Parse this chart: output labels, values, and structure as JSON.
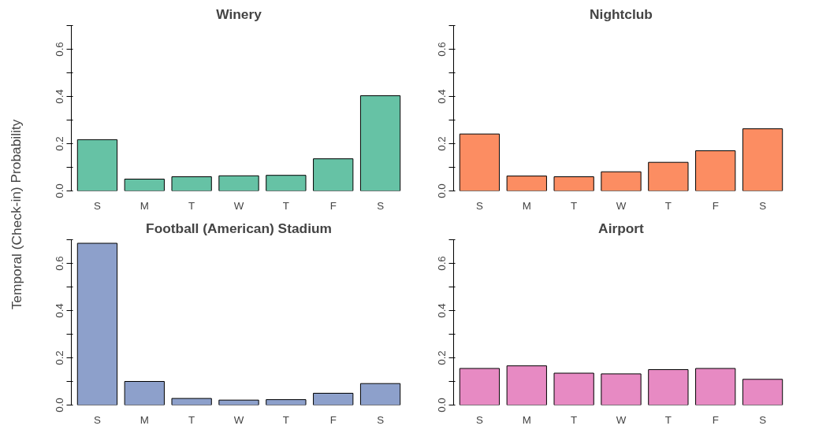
{
  "chart_data": [
    {
      "type": "bar",
      "title": "Winery",
      "ylabel": "Temporal (Check-in) Probability",
      "categories": [
        "S",
        "M",
        "T",
        "W",
        "T",
        "F",
        "S"
      ],
      "values": [
        0.217,
        0.05,
        0.06,
        0.064,
        0.066,
        0.136,
        0.403
      ],
      "color": "#66c2a5",
      "ylim": [
        0,
        0.7
      ],
      "yticks": [
        {
          "value": 0,
          "label": "0.0"
        },
        {
          "value": 0.1,
          "label": null
        },
        0.2,
        {
          "value": 0.3,
          "label": null
        },
        0.4,
        {
          "value": 0.5,
          "label": null
        },
        0.6,
        {
          "value": 0.7,
          "label": null
        }
      ],
      "grid": false
    },
    {
      "type": "bar",
      "title": "Nightclub",
      "categories": [
        "S",
        "M",
        "T",
        "W",
        "T",
        "F",
        "S"
      ],
      "values": [
        0.241,
        0.063,
        0.06,
        0.081,
        0.121,
        0.17,
        0.263
      ],
      "color": "#fc8d62",
      "ylim": [
        0,
        0.7
      ],
      "yticks": [
        {
          "value": 0,
          "label": "0.0"
        },
        {
          "value": 0.1,
          "label": null
        },
        0.2,
        {
          "value": 0.3,
          "label": null
        },
        0.4,
        {
          "value": 0.5,
          "label": null
        },
        0.6,
        {
          "value": 0.7,
          "label": null
        }
      ],
      "grid": false
    },
    {
      "type": "bar",
      "title": "Football (American) Stadium",
      "categories": [
        "S",
        "M",
        "T",
        "W",
        "T",
        "F",
        "S"
      ],
      "values": [
        0.685,
        0.1,
        0.028,
        0.021,
        0.023,
        0.05,
        0.091
      ],
      "color": "#8da0cb",
      "ylim": [
        0,
        0.7
      ],
      "yticks": [
        {
          "value": 0,
          "label": "0.0"
        },
        {
          "value": 0.1,
          "label": null
        },
        0.2,
        {
          "value": 0.3,
          "label": null
        },
        0.4,
        {
          "value": 0.5,
          "label": null
        },
        0.6,
        {
          "value": 0.7,
          "label": null
        }
      ],
      "grid": false
    },
    {
      "type": "bar",
      "title": "Airport",
      "categories": [
        "S",
        "M",
        "T",
        "W",
        "T",
        "F",
        "S"
      ],
      "values": [
        0.155,
        0.166,
        0.135,
        0.132,
        0.15,
        0.155,
        0.109
      ],
      "color": "#e78ac3",
      "ylim": [
        0,
        0.7
      ],
      "yticks": [
        {
          "value": 0,
          "label": "0.0"
        },
        {
          "value": 0.1,
          "label": null
        },
        0.2,
        {
          "value": 0.3,
          "label": null
        },
        0.4,
        {
          "value": 0.5,
          "label": null
        },
        0.6,
        {
          "value": 0.7,
          "label": null
        }
      ],
      "grid": false
    }
  ]
}
